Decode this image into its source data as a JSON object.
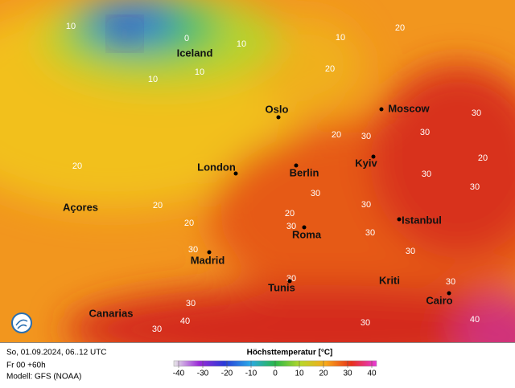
{
  "map": {
    "cities": [
      "Iceland",
      "Oslo",
      "Moscow",
      "London",
      "Berlin",
      "Kyiv",
      "Açores",
      "Istanbul",
      "Roma",
      "Madrid",
      "Tunis",
      "Kriti",
      "Cairo",
      "Canarias"
    ],
    "isotherm_labels": [
      10,
      0,
      10,
      10,
      10,
      10,
      20,
      20,
      20,
      20,
      20,
      20,
      20,
      20,
      30,
      30,
      30,
      30,
      30,
      30,
      30,
      30,
      30,
      30,
      30,
      30,
      30,
      30,
      30,
      40,
      40,
      30
    ]
  },
  "footer": {
    "valid_time": "So, 01.09.2024, 06..12 UTC",
    "run": "Fr 00 +60h",
    "model": "Modell: GFS (NOAA)",
    "legend_title": "Höchsttemperatur [°C]"
  },
  "colorbar": {
    "ticks": [
      -40,
      -30,
      -20,
      -10,
      0,
      10,
      20,
      30,
      40
    ],
    "colors": [
      "#e8e8e8",
      "#9a2ad8",
      "#2a3ad8",
      "#2aa8e8",
      "#2ab84a",
      "#b8d82a",
      "#f8a81a",
      "#e8301a",
      "#e83ad8"
    ]
  }
}
